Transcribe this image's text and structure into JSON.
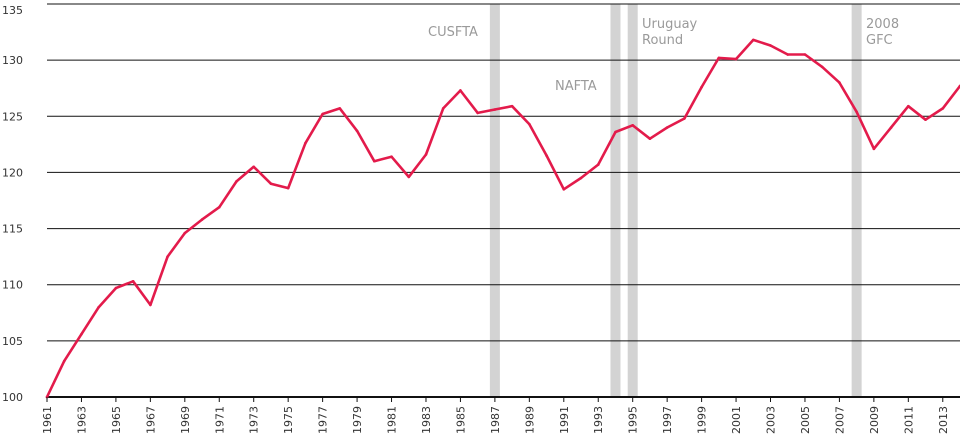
{
  "chart_data": {
    "type": "line",
    "title": "",
    "xlabel": "",
    "ylabel": "",
    "ylim": [
      100,
      135
    ],
    "xlim": [
      1961,
      2014
    ],
    "yticks": [
      100,
      105,
      110,
      115,
      120,
      125,
      130,
      135
    ],
    "xticks": [
      1961,
      1963,
      1965,
      1967,
      1969,
      1971,
      1973,
      1975,
      1977,
      1979,
      1981,
      1983,
      1985,
      1987,
      1989,
      1991,
      1993,
      1995,
      1997,
      1999,
      2001,
      2003,
      2005,
      2007,
      2009,
      2011,
      2013
    ],
    "grid": "horizontal",
    "line_color": "#e31b4b",
    "band_color": "#d3d3d3",
    "x": [
      1961,
      1962,
      1963,
      1964,
      1965,
      1966,
      1967,
      1968,
      1969,
      1970,
      1971,
      1972,
      1973,
      1974,
      1975,
      1976,
      1977,
      1978,
      1979,
      1980,
      1981,
      1982,
      1983,
      1984,
      1985,
      1986,
      1987,
      1988,
      1989,
      1990,
      1991,
      1992,
      1993,
      1994,
      1995,
      1996,
      1997,
      1998,
      1999,
      2000,
      2001,
      2002,
      2003,
      2004,
      2005,
      2006,
      2007,
      2008,
      2009,
      2010,
      2011,
      2012,
      2013,
      2014
    ],
    "y": [
      100.0,
      103.2,
      105.6,
      108.0,
      109.7,
      110.3,
      108.2,
      112.5,
      114.6,
      115.8,
      116.9,
      119.2,
      120.5,
      119.0,
      118.6,
      122.6,
      125.2,
      125.7,
      123.7,
      121.0,
      121.4,
      119.6,
      121.6,
      125.7,
      127.3,
      125.3,
      125.6,
      125.9,
      124.3,
      121.5,
      118.5,
      119.5,
      120.7,
      123.6,
      124.2,
      123.0,
      124.0,
      124.8,
      127.6,
      130.2,
      130.1,
      131.8,
      131.3,
      130.5,
      130.5,
      129.4,
      128.0,
      125.4,
      122.1,
      124.0,
      125.9,
      124.7,
      125.7,
      127.7
    ],
    "bands": [
      {
        "x": 1987,
        "label": "CUSFTA"
      },
      {
        "x": 1994,
        "label": "NAFTA"
      },
      {
        "x": 1995,
        "label": "Uruguay Round"
      },
      {
        "x": 2008,
        "label": "2008 GFC"
      }
    ]
  }
}
